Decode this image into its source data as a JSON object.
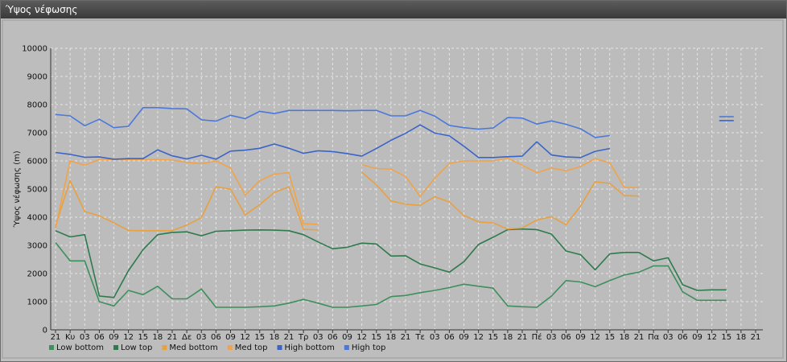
{
  "window": {
    "title": "Ύψος νέφωσης"
  },
  "chart_data": {
    "type": "line",
    "title": "",
    "xlabel": "",
    "ylabel": "Ύψος νέφωσης (m)",
    "ylim": [
      0,
      10000
    ],
    "yticks": [
      0,
      1000,
      2000,
      3000,
      4000,
      5000,
      6000,
      7000,
      8000,
      9000,
      10000
    ],
    "categories": [
      "21",
      "Κυ",
      "03",
      "06",
      "09",
      "12",
      "15",
      "18",
      "21",
      "Δε",
      "03",
      "06",
      "09",
      "12",
      "15",
      "18",
      "21",
      "Τρ",
      "03",
      "06",
      "09",
      "12",
      "15",
      "18",
      "21",
      "Τε",
      "03",
      "06",
      "09",
      "12",
      "15",
      "18",
      "21",
      "Πέ",
      "03",
      "06",
      "09",
      "12",
      "15",
      "18",
      "21",
      "Πα",
      "03",
      "06",
      "09",
      "12",
      "15",
      "18",
      "21"
    ],
    "grid": true,
    "legend_position": "bottom-left",
    "series": [
      {
        "name": "Low bottom",
        "color": "#3d8f5c",
        "values": [
          3100,
          2450,
          2450,
          1000,
          850,
          1400,
          1250,
          1550,
          1100,
          1100,
          1450,
          800,
          800,
          800,
          820,
          850,
          950,
          1080,
          950,
          800,
          800,
          850,
          900,
          1180,
          1220,
          1320,
          1400,
          1500,
          1620,
          1550,
          1480,
          850,
          820,
          800,
          1200,
          1750,
          1700,
          1530,
          1750,
          1950,
          2050,
          2270,
          2270,
          1350,
          1050,
          1050,
          1050,
          null,
          null
        ]
      },
      {
        "name": "Low top",
        "color": "#2e7a4d",
        "values": [
          3520,
          3300,
          3380,
          1200,
          1150,
          2100,
          2850,
          3380,
          3460,
          3480,
          3340,
          3500,
          3520,
          3540,
          3550,
          3540,
          3520,
          3380,
          3120,
          2880,
          2930,
          3080,
          3050,
          2620,
          2630,
          2340,
          2200,
          2050,
          2420,
          3030,
          3290,
          3560,
          3580,
          3560,
          3400,
          2800,
          2670,
          2130,
          2700,
          2750,
          2750,
          2450,
          2560,
          1600,
          1400,
          1420,
          1420,
          null,
          null
        ]
      },
      {
        "name": "Med bottom",
        "color": "#e8a040",
        "values": [
          3700,
          5300,
          4200,
          4050,
          3800,
          3530,
          3520,
          3520,
          3520,
          3720,
          3980,
          5080,
          5000,
          4080,
          4450,
          4880,
          5080,
          3570,
          3550,
          null,
          null,
          5600,
          5150,
          4580,
          4460,
          4420,
          4730,
          4540,
          4060,
          3830,
          3800,
          3580,
          3620,
          3900,
          4020,
          3730,
          4400,
          5260,
          5200,
          4770,
          4750,
          null,
          null,
          null,
          null,
          null,
          null,
          null,
          null
        ]
      },
      {
        "name": "Med top",
        "color": "#f0a348",
        "values": [
          3600,
          6000,
          5850,
          6050,
          6050,
          6050,
          6050,
          6050,
          6030,
          5950,
          5900,
          6000,
          5750,
          4780,
          5300,
          5530,
          5580,
          3770,
          3750,
          null,
          null,
          5860,
          5730,
          5710,
          5450,
          4740,
          5380,
          5910,
          6000,
          6000,
          6000,
          6100,
          5850,
          5580,
          5750,
          5650,
          5800,
          6080,
          5930,
          5060,
          5050,
          null,
          null,
          null,
          null,
          null,
          null,
          null,
          null
        ]
      },
      {
        "name": "High bottom",
        "color": "#3a64c8",
        "values": [
          6300,
          6230,
          6130,
          6140,
          6060,
          6080,
          6080,
          6390,
          6180,
          6070,
          6200,
          6060,
          6350,
          6380,
          6450,
          6600,
          6450,
          6270,
          6360,
          6330,
          6260,
          6170,
          6440,
          6730,
          6980,
          7280,
          6990,
          6890,
          6520,
          6120,
          6120,
          6150,
          6170,
          6680,
          6210,
          6140,
          6120,
          6340,
          6440,
          null,
          null,
          null,
          null,
          null,
          null,
          null,
          7430,
          null,
          null
        ]
      },
      {
        "name": "High top",
        "color": "#4b79da",
        "values": [
          7650,
          7600,
          7250,
          7480,
          7180,
          7230,
          7890,
          7890,
          7860,
          7850,
          7460,
          7410,
          7620,
          7500,
          7760,
          7680,
          7790,
          7790,
          7790,
          7790,
          7780,
          7790,
          7790,
          7600,
          7600,
          7790,
          7590,
          7260,
          7180,
          7130,
          7170,
          7540,
          7520,
          7310,
          7420,
          7300,
          7140,
          6830,
          6900,
          null,
          null,
          null,
          null,
          null,
          null,
          null,
          7570,
          null,
          null
        ]
      }
    ]
  }
}
